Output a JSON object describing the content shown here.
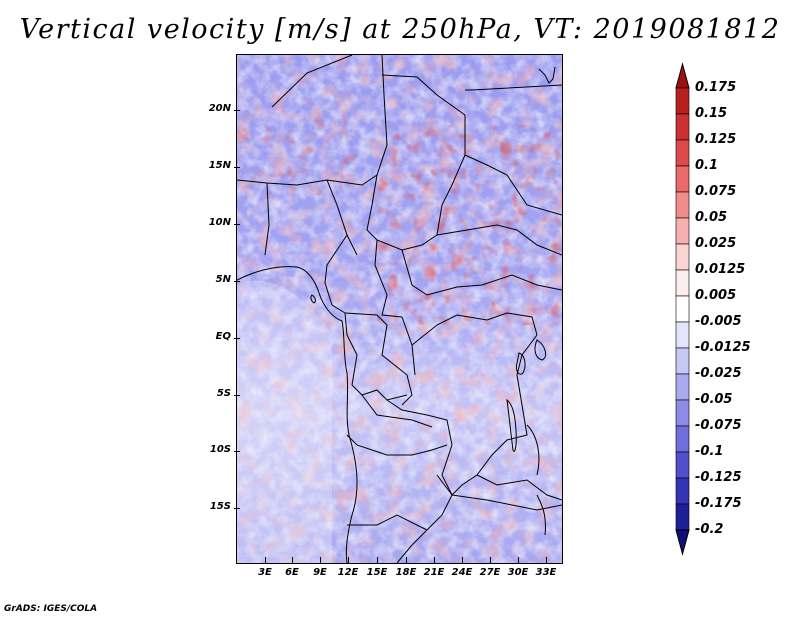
{
  "title": "Vertical velocity [m/s] at 250hPa, VT: 2019081812",
  "credit": "GrADS: IGES/COLA",
  "map": {
    "latitude_labels": [
      "20N",
      "15N",
      "10N",
      "5N",
      "EQ",
      "5S",
      "10S",
      "15S"
    ],
    "longitude_labels": [
      "3E",
      "6E",
      "9E",
      "12E",
      "15E",
      "18E",
      "21E",
      "24E",
      "27E",
      "30E",
      "33E"
    ]
  },
  "colorbar": {
    "levels": [
      "0.175",
      "0.15",
      "0.125",
      "0.1",
      "0.075",
      "0.05",
      "0.025",
      "0.0125",
      "0.005",
      "-0.005",
      "-0.0125",
      "-0.025",
      "-0.05",
      "-0.075",
      "-0.1",
      "-0.125",
      "-0.175",
      "-0.2"
    ],
    "colors": [
      "#a01010",
      "#b82020",
      "#cc3030",
      "#dd4a4a",
      "#e86a6a",
      "#f08c8c",
      "#f6b0b0",
      "#fbd4d4",
      "#fdeeee",
      "#ffffff",
      "#e4e4fb",
      "#c8c8f6",
      "#aaaaf0",
      "#8c8ce8",
      "#6e6edc",
      "#5050cc",
      "#3434b4",
      "#1e1e96",
      "#10107a"
    ]
  }
}
